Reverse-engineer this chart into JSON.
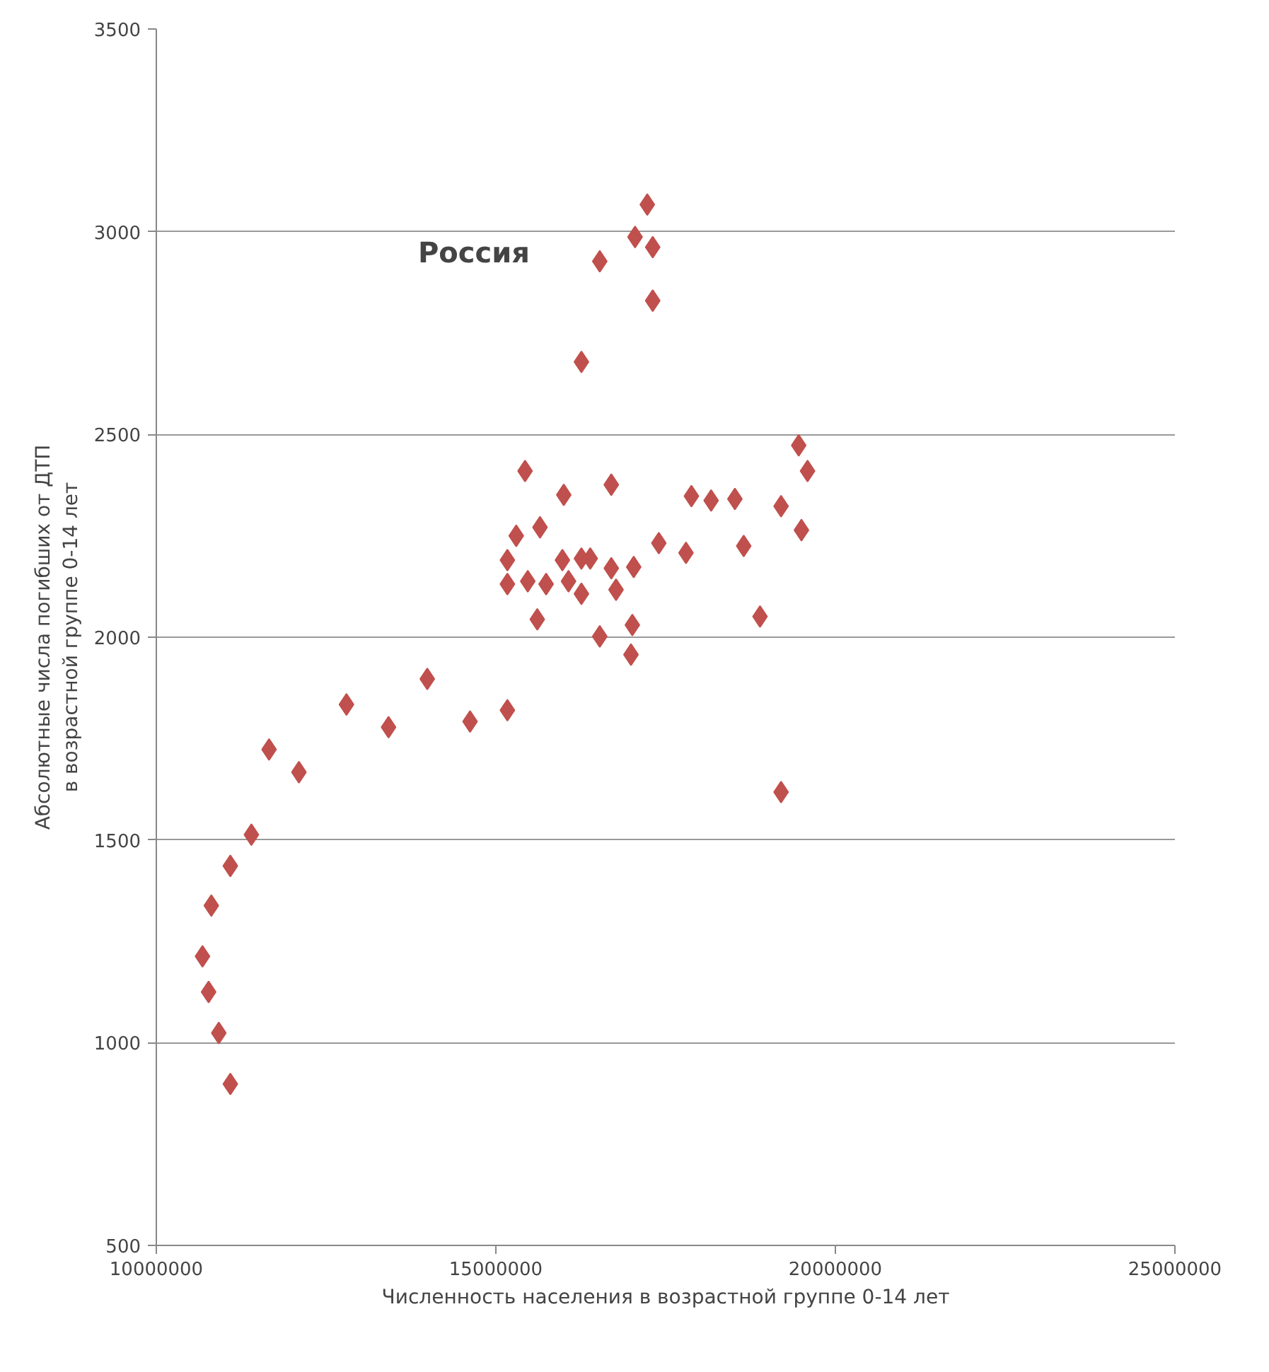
{
  "chart_data": {
    "type": "scatter",
    "xlabel": "Численность населения в возрастной группе 0-14 лет",
    "ylabel": "Абсолютные числа погибших от ДТП\nв возрастной группе 0-14 лет",
    "annotations": [
      "Россия"
    ],
    "x": [
      10680000,
      10770000,
      10810000,
      10920000,
      11090000,
      11090000,
      11400000,
      11660000,
      12100000,
      12800000,
      13420000,
      13990000,
      14620000,
      15170000,
      15170000,
      15170000,
      15300000,
      15430000,
      15470000,
      15610000,
      15650000,
      15740000,
      15980000,
      16000000,
      16070000,
      16260000,
      16260000,
      16260000,
      16390000,
      16530000,
      16530000,
      16700000,
      16700000,
      16770000,
      16990000,
      17010000,
      17030000,
      17050000,
      17230000,
      17310000,
      17310000,
      17400000,
      17800000,
      17880000,
      18170000,
      18520000,
      18650000,
      18890000,
      19200000,
      19200000,
      19460000,
      19500000,
      19590000
    ],
    "values": [
      1213,
      1125,
      1338,
      1024,
      898,
      1436,
      1513,
      1723,
      1667,
      1834,
      1778,
      1897,
      1792,
      1820,
      2190,
      2131,
      2250,
      2410,
      2138,
      2044,
      2271,
      2131,
      2190,
      2351,
      2138,
      2107,
      2679,
      2194,
      2194,
      2002,
      2927,
      2170,
      2376,
      2117,
      1957,
      2030,
      2173,
      2987,
      3067,
      2962,
      2830,
      2232,
      2208,
      2348,
      2337,
      2341,
      2225,
      2051,
      2323,
      1618,
      2473,
      2264,
      2410
    ],
    "color": "#c0504d",
    "marker": "diamond",
    "grid": "y",
    "xlim": [
      10000000,
      25000000
    ],
    "xticks": [
      10000000,
      15000000,
      20000000,
      25000000
    ],
    "ylim": [
      500,
      3500
    ],
    "yticks": [
      500,
      1000,
      1500,
      2000,
      2500,
      3000,
      3500
    ]
  }
}
